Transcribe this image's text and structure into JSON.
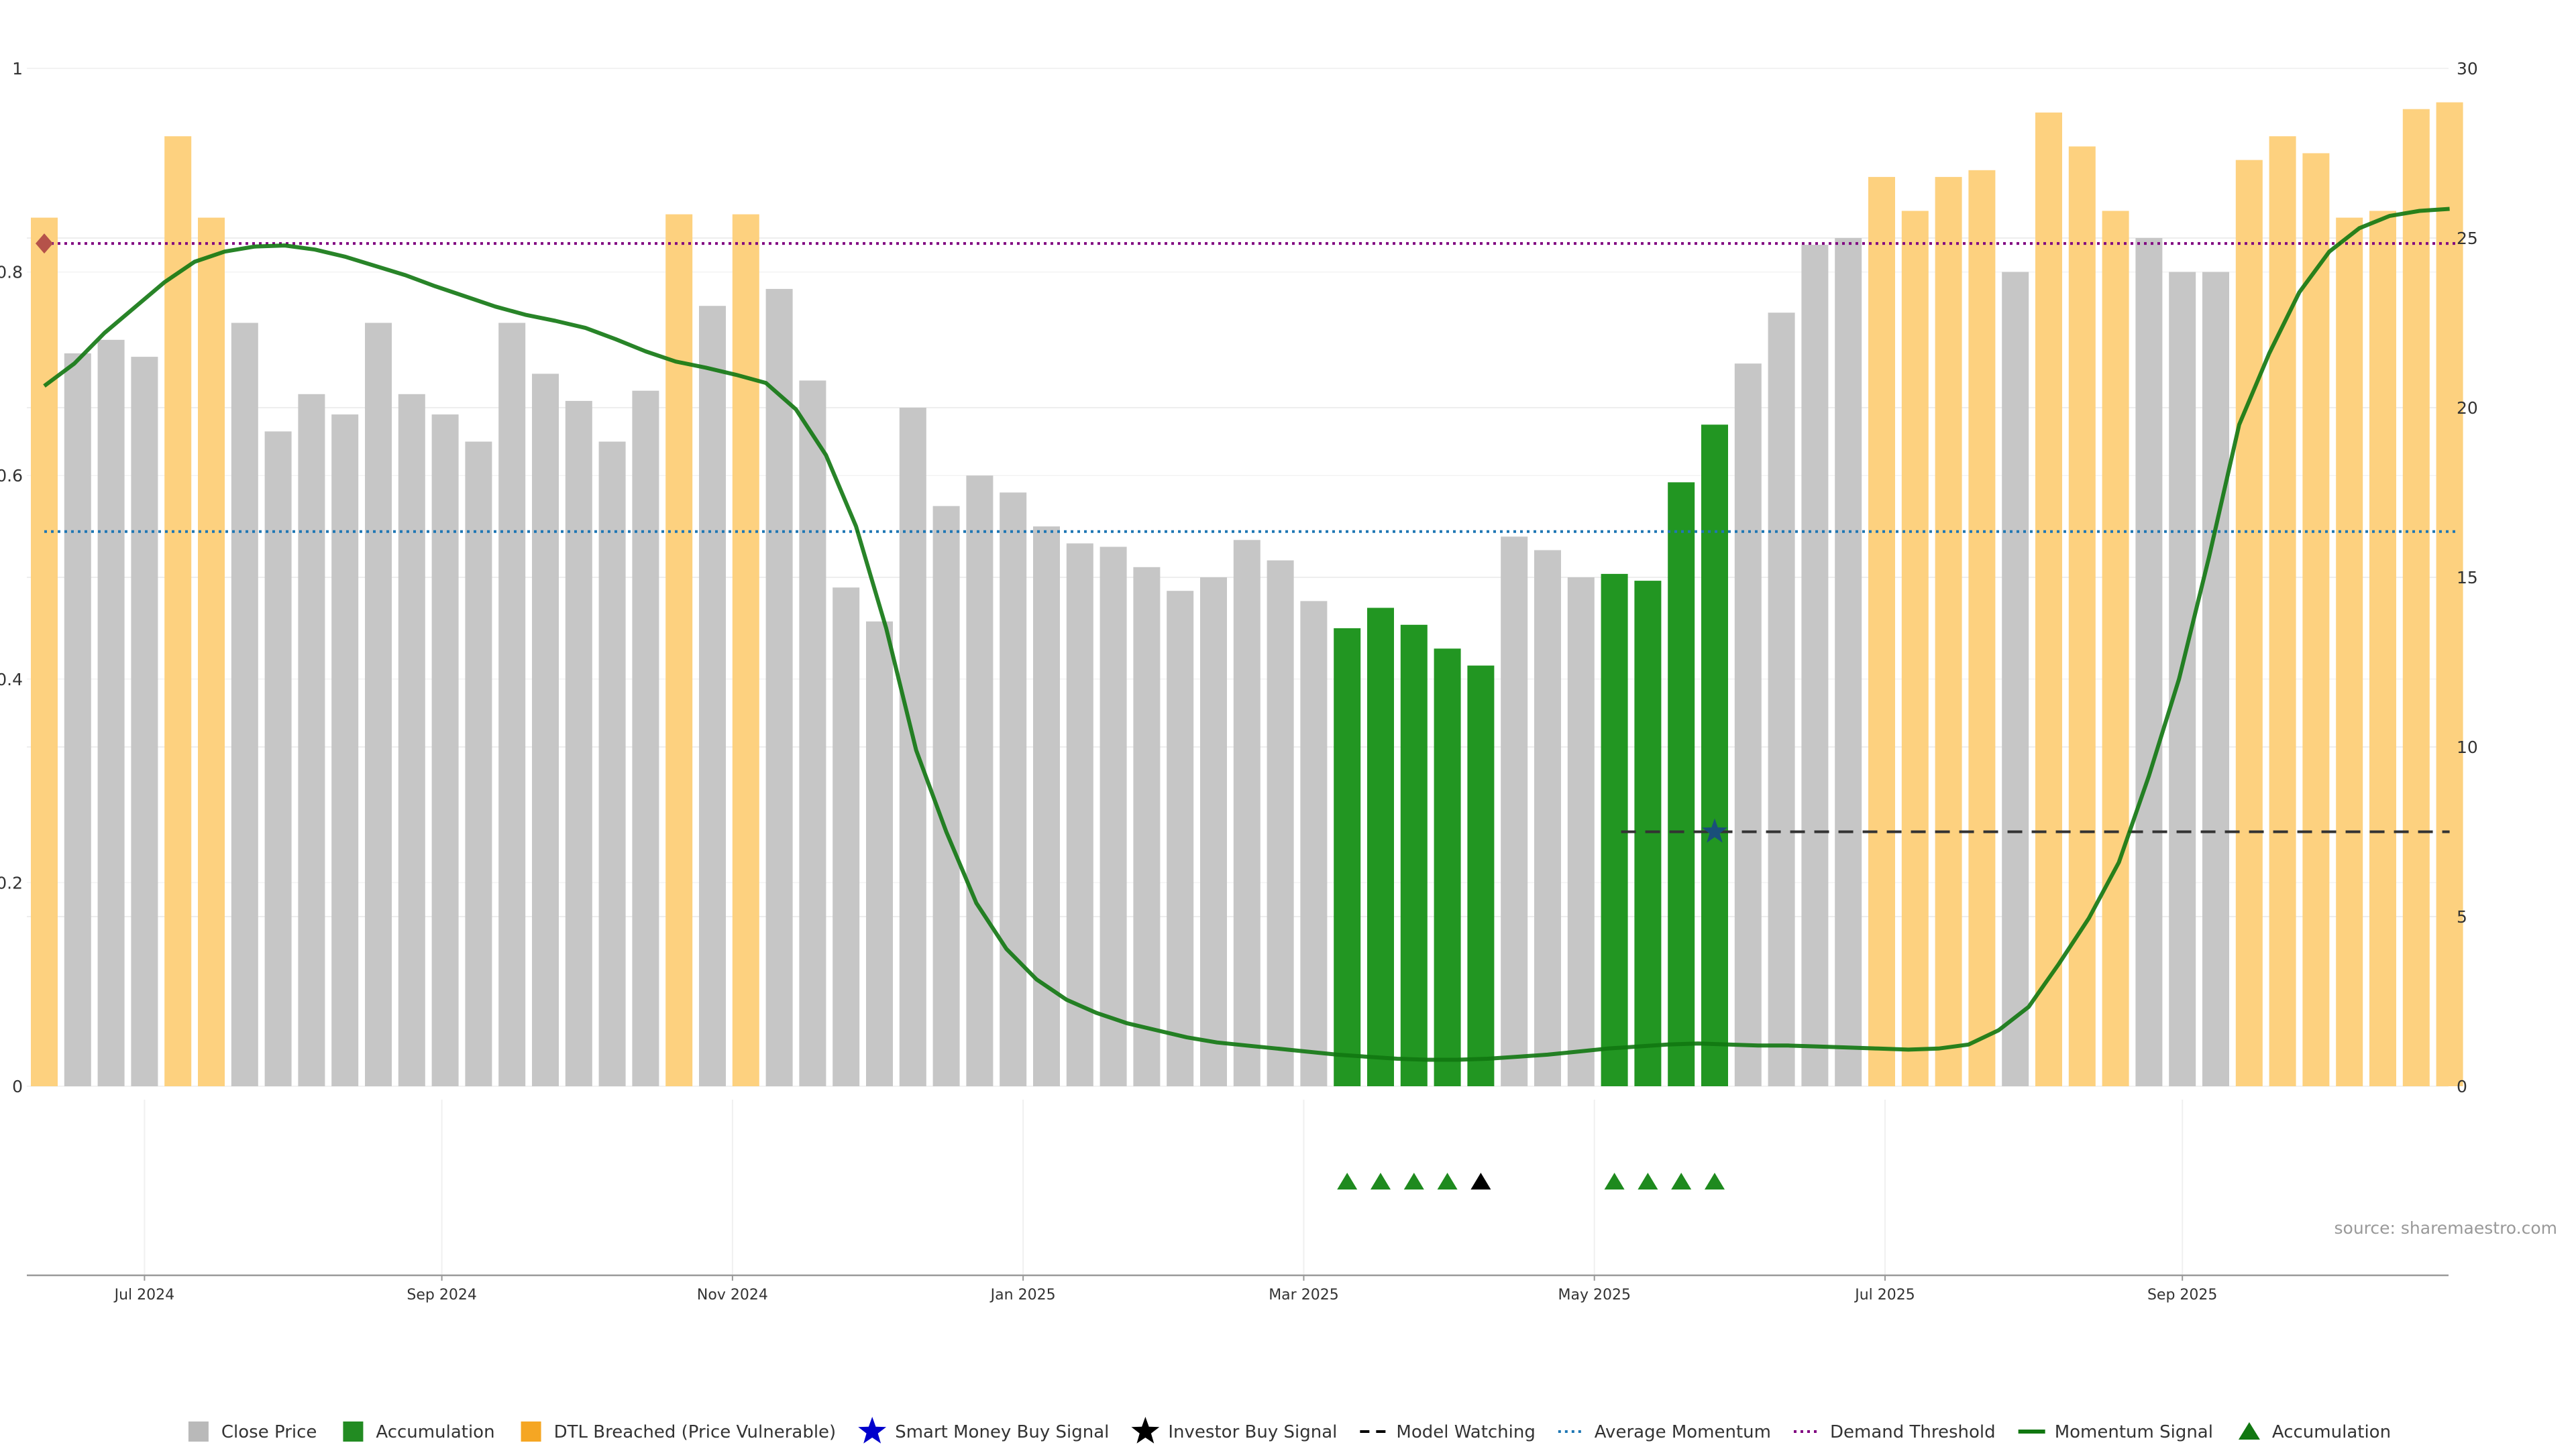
{
  "chart_data": {
    "type": "bar",
    "source": "source: sharemaestro.com",
    "left_axis": {
      "range": [
        0,
        1
      ],
      "ticks": [
        0,
        0.2,
        0.4,
        0.6,
        0.8,
        1
      ],
      "tick_labels": [
        "0",
        "0.2",
        "0.4",
        "0.6",
        "0.8",
        "1"
      ]
    },
    "right_axis": {
      "range": [
        0,
        30
      ],
      "ticks": [
        0,
        5,
        10,
        15,
        20,
        25,
        30
      ],
      "tick_labels": [
        "0",
        "5",
        "10",
        "15",
        "20",
        "25",
        "30"
      ]
    },
    "x_ticks": [
      {
        "label": "Jul 2024",
        "index": 3
      },
      {
        "label": "Sep 2024",
        "index": 11.9
      },
      {
        "label": "Nov 2024",
        "index": 20.6
      },
      {
        "label": "Jan 2025",
        "index": 29.3
      },
      {
        "label": "Mar 2025",
        "index": 37.7
      },
      {
        "label": "May 2025",
        "index": 46.4
      },
      {
        "label": "Jul 2025",
        "index": 55.1
      },
      {
        "label": "Sep 2025",
        "index": 64
      }
    ],
    "bars": {
      "values": [
        25.6,
        21.6,
        22,
        21.5,
        28,
        25.6,
        22.5,
        19.3,
        20.4,
        19.8,
        22.5,
        20.4,
        19.8,
        19,
        22.5,
        21,
        20.2,
        19,
        20.5,
        25.7,
        23,
        25.7,
        23.5,
        20.8,
        14.7,
        13.7,
        20,
        17.1,
        18,
        17.5,
        16.5,
        16,
        15.9,
        15.3,
        14.6,
        15,
        16.1,
        15.5,
        14.3,
        13.5,
        14.1,
        13.6,
        12.9,
        12.4,
        16.2,
        15.8,
        15,
        15.1,
        14.9,
        17.8,
        19.5,
        21.3,
        22.8,
        24.8,
        25,
        26.8,
        25.8,
        26.8,
        27,
        24,
        28.7,
        27.7,
        25.8,
        25,
        24,
        24,
        27.3,
        28,
        27.5,
        25.6,
        25.8,
        28.8,
        29
      ],
      "categories": [
        "dtl",
        "close",
        "close",
        "close",
        "dtl",
        "dtl",
        "close",
        "close",
        "close",
        "close",
        "close",
        "close",
        "close",
        "close",
        "close",
        "close",
        "close",
        "close",
        "close",
        "dtl",
        "close",
        "dtl",
        "close",
        "close",
        "close",
        "close",
        "close",
        "close",
        "close",
        "close",
        "close",
        "close",
        "close",
        "close",
        "close",
        "close",
        "close",
        "close",
        "close",
        "accumulation",
        "accumulation",
        "accumulation",
        "accumulation",
        "accumulation",
        "close",
        "close",
        "close",
        "accumulation",
        "accumulation",
        "accumulation",
        "accumulation",
        "close",
        "close",
        "close",
        "close",
        "dtl",
        "dtl",
        "dtl",
        "dtl",
        "close",
        "dtl",
        "dtl",
        "dtl",
        "close",
        "close",
        "close",
        "dtl",
        "dtl",
        "dtl",
        "dtl",
        "dtl",
        "dtl",
        "dtl"
      ]
    },
    "momentum_signal": [
      0.688,
      0.71,
      0.74,
      0.765,
      0.79,
      0.81,
      0.82,
      0.825,
      0.826,
      0.822,
      0.815,
      0.806,
      0.797,
      0.786,
      0.776,
      0.766,
      0.758,
      0.752,
      0.745,
      0.734,
      0.722,
      0.712,
      0.706,
      0.699,
      0.691,
      0.665,
      0.62,
      0.55,
      0.45,
      0.33,
      0.25,
      0.18,
      0.135,
      0.105,
      0.085,
      0.072,
      0.062,
      0.055,
      0.048,
      0.043,
      0.04,
      0.037,
      0.034,
      0.031,
      0.029,
      0.027,
      0.026,
      0.026,
      0.027,
      0.029,
      0.031,
      0.034,
      0.037,
      0.039,
      0.041,
      0.042,
      0.041,
      0.04,
      0.04,
      0.039,
      0.038,
      0.037,
      0.036,
      0.037,
      0.041,
      0.055,
      0.078,
      0.12,
      0.165,
      0.22,
      0.305,
      0.4,
      0.52,
      0.65,
      0.72,
      0.78,
      0.82,
      0.843,
      0.855,
      0.86,
      0.862
    ],
    "average_momentum": 0.545,
    "demand_threshold": 0.828,
    "model_watching": {
      "value": 0.25,
      "from_index": 47.2,
      "to_index": 72
    },
    "signals": [
      {
        "name": "Smart Money Buy Signal",
        "index": 0,
        "y_left": 0.828,
        "color": "#b5524a",
        "shape": "diamond"
      },
      {
        "name": "Smart Money Buy Signal",
        "index": 50,
        "y_left": 0.25,
        "color": "#1a4f7a",
        "shape": "star"
      }
    ],
    "accumulation_markers": [
      {
        "index": 39,
        "color": "#1e8a1e"
      },
      {
        "index": 40,
        "color": "#1e8a1e"
      },
      {
        "index": 41,
        "color": "#1e8a1e"
      },
      {
        "index": 42,
        "color": "#1e8a1e"
      },
      {
        "index": 43,
        "color": "#000000"
      },
      {
        "index": 47,
        "color": "#1e8a1e"
      },
      {
        "index": 48,
        "color": "#1e8a1e"
      },
      {
        "index": 49,
        "color": "#1e8a1e"
      },
      {
        "index": 50,
        "color": "#1e8a1e"
      }
    ],
    "legend": [
      {
        "label": "Close Price",
        "kind": "square",
        "color": "#b9b9b9"
      },
      {
        "label": "Accumulation",
        "kind": "square",
        "color": "#228b22"
      },
      {
        "label": "DTL Breached (Price Vulnerable)",
        "kind": "square",
        "color": "#f5a623"
      },
      {
        "label": "Smart Money Buy Signal",
        "kind": "star",
        "color": "#0000cc"
      },
      {
        "label": "Investor Buy Signal",
        "kind": "star",
        "color": "#000000"
      },
      {
        "label": "Model Watching",
        "kind": "dash",
        "color": "#000000"
      },
      {
        "label": "Average Momentum",
        "kind": "dot",
        "color": "#1f77b4"
      },
      {
        "label": "Demand Threshold",
        "kind": "dot",
        "color": "#800080"
      },
      {
        "label": "Momentum Signal",
        "kind": "line",
        "color": "#117711"
      },
      {
        "label": "Accumulation",
        "kind": "triangle",
        "color": "#117711"
      }
    ],
    "colors": {
      "close": "#c6c6c6",
      "accumulation": "#229622",
      "dtl": "#fdd17f",
      "momentum": "#117711",
      "average_momentum": "#1f77b4",
      "demand_threshold": "#800080",
      "model_watching": "#333333",
      "grid": "#eeeeee",
      "axis": "#999999"
    }
  }
}
